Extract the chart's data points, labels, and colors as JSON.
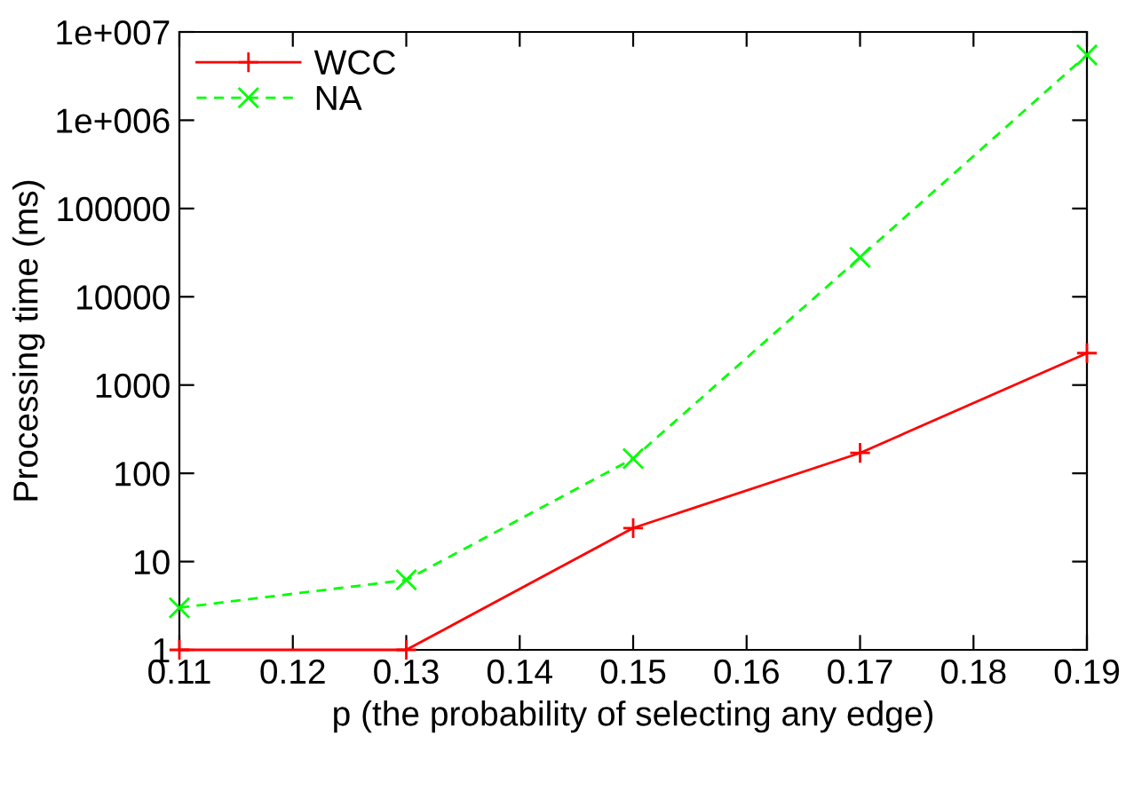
{
  "chart_data": {
    "type": "line",
    "xlabel": "p (the probability of selecting any edge)",
    "ylabel": "Processing time (ms)",
    "x": [
      0.11,
      0.13,
      0.15,
      0.17,
      0.19
    ],
    "series": [
      {
        "name": "WCC",
        "color": "#ff0000",
        "values": [
          1,
          1,
          24,
          170,
          2300
        ],
        "marker": "cross",
        "line_style": "solid"
      },
      {
        "name": "NA",
        "color": "#00ff00",
        "values": [
          3,
          6.2,
          147,
          28000,
          5500000
        ],
        "marker": "x",
        "line_style": "dashed"
      }
    ],
    "log": "y",
    "xlim": [
      0.11,
      0.19
    ],
    "xticks": [
      0.11,
      0.12,
      0.13,
      0.14,
      0.15,
      0.16,
      0.17,
      0.18,
      0.19
    ],
    "ylim": [
      1,
      10000000
    ],
    "yticks": [
      1,
      10,
      100,
      1000,
      10000,
      100000,
      {
        "value": 1000000,
        "label": "1e+006"
      },
      {
        "value": 10000000,
        "label": "1e+007"
      }
    ],
    "legend": "top left",
    "grid": false
  }
}
